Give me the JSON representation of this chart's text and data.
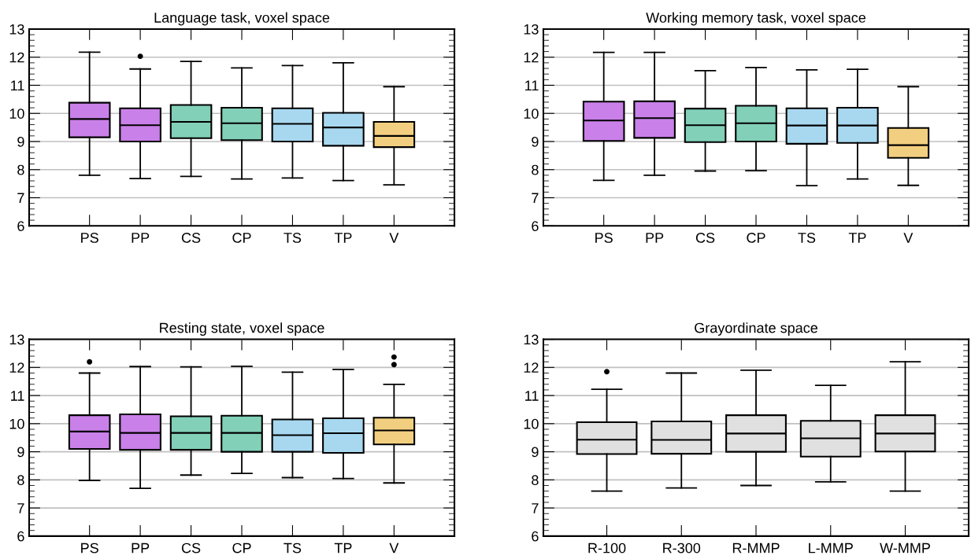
{
  "chart_data": [
    {
      "type": "box",
      "title": "Language task, voxel space",
      "categories": [
        "PS",
        "PP",
        "CS",
        "CP",
        "TS",
        "TP",
        "V"
      ],
      "colors": [
        "#c980e8",
        "#c980e8",
        "#82d0b8",
        "#82d0b8",
        "#a8d8f0",
        "#a8d8f0",
        "#f2cf80"
      ],
      "ylim": [
        6,
        13
      ],
      "yticks": [
        6,
        7,
        8,
        9,
        10,
        11,
        12,
        13
      ],
      "grid": "y",
      "boxes": [
        {
          "low": 7.8,
          "q1": 9.15,
          "median": 9.8,
          "q3": 10.38,
          "high": 12.18
        },
        {
          "low": 7.68,
          "q1": 9.0,
          "median": 9.58,
          "q3": 10.18,
          "high": 11.58,
          "outliers": [
            12.03
          ]
        },
        {
          "low": 7.76,
          "q1": 9.12,
          "median": 9.7,
          "q3": 10.3,
          "high": 11.85
        },
        {
          "low": 7.67,
          "q1": 9.05,
          "median": 9.65,
          "q3": 10.2,
          "high": 11.62
        },
        {
          "low": 7.7,
          "q1": 9.0,
          "median": 9.63,
          "q3": 10.18,
          "high": 11.7
        },
        {
          "low": 7.61,
          "q1": 8.85,
          "median": 9.5,
          "q3": 10.02,
          "high": 11.8
        },
        {
          "low": 7.46,
          "q1": 8.8,
          "median": 9.2,
          "q3": 9.7,
          "high": 10.95
        }
      ]
    },
    {
      "type": "box",
      "title": "Working memory task, voxel space",
      "categories": [
        "PS",
        "PP",
        "CS",
        "CP",
        "TS",
        "TP",
        "V"
      ],
      "colors": [
        "#c980e8",
        "#c980e8",
        "#82d0b8",
        "#82d0b8",
        "#a8d8f0",
        "#a8d8f0",
        "#f2cf80"
      ],
      "ylim": [
        6,
        13
      ],
      "yticks": [
        6,
        7,
        8,
        9,
        10,
        11,
        12,
        13
      ],
      "grid": "y",
      "boxes": [
        {
          "low": 7.62,
          "q1": 9.02,
          "median": 9.75,
          "q3": 10.42,
          "high": 12.17
        },
        {
          "low": 7.8,
          "q1": 9.13,
          "median": 9.83,
          "q3": 10.43,
          "high": 12.17
        },
        {
          "low": 7.95,
          "q1": 8.98,
          "median": 9.58,
          "q3": 10.17,
          "high": 11.52
        },
        {
          "low": 7.96,
          "q1": 9.0,
          "median": 9.65,
          "q3": 10.27,
          "high": 11.63
        },
        {
          "low": 7.43,
          "q1": 8.92,
          "median": 9.57,
          "q3": 10.18,
          "high": 11.55
        },
        {
          "low": 7.67,
          "q1": 8.95,
          "median": 9.57,
          "q3": 10.2,
          "high": 11.57
        },
        {
          "low": 7.44,
          "q1": 8.42,
          "median": 8.87,
          "q3": 9.48,
          "high": 10.95
        }
      ]
    },
    {
      "type": "box",
      "title": "Resting state, voxel space",
      "categories": [
        "PS",
        "PP",
        "CS",
        "CP",
        "TS",
        "TP",
        "V"
      ],
      "colors": [
        "#c980e8",
        "#c980e8",
        "#82d0b8",
        "#82d0b8",
        "#a8d8f0",
        "#a8d8f0",
        "#f2cf80"
      ],
      "ylim": [
        6,
        13
      ],
      "yticks": [
        6,
        7,
        8,
        9,
        10,
        11,
        12,
        13
      ],
      "grid": "y",
      "boxes": [
        {
          "low": 7.98,
          "q1": 9.1,
          "median": 9.72,
          "q3": 10.3,
          "high": 11.8,
          "outliers": [
            12.2
          ]
        },
        {
          "low": 7.7,
          "q1": 9.07,
          "median": 9.67,
          "q3": 10.33,
          "high": 12.03
        },
        {
          "low": 8.17,
          "q1": 9.07,
          "median": 9.67,
          "q3": 10.26,
          "high": 12.02
        },
        {
          "low": 8.23,
          "q1": 9.0,
          "median": 9.67,
          "q3": 10.28,
          "high": 12.04
        },
        {
          "low": 8.08,
          "q1": 9.0,
          "median": 9.59,
          "q3": 10.15,
          "high": 11.83
        },
        {
          "low": 8.05,
          "q1": 8.96,
          "median": 9.66,
          "q3": 10.19,
          "high": 11.93
        },
        {
          "low": 7.89,
          "q1": 9.26,
          "median": 9.76,
          "q3": 10.21,
          "high": 11.4,
          "outliers": [
            12.1,
            12.37
          ]
        }
      ]
    },
    {
      "type": "box",
      "title": "Grayordinate space",
      "categories": [
        "R-100",
        "R-300",
        "R-MMP",
        "L-MMP",
        "W-MMP"
      ],
      "colors": [
        "#e0e0e0",
        "#e0e0e0",
        "#e0e0e0",
        "#e0e0e0",
        "#e0e0e0"
      ],
      "ylim": [
        6,
        13
      ],
      "yticks": [
        6,
        7,
        8,
        9,
        10,
        11,
        12,
        13
      ],
      "grid": "y",
      "boxes": [
        {
          "low": 7.6,
          "q1": 8.92,
          "median": 9.43,
          "q3": 10.05,
          "high": 11.22,
          "outliers": [
            11.85
          ]
        },
        {
          "low": 7.71,
          "q1": 8.93,
          "median": 9.42,
          "q3": 10.08,
          "high": 11.8
        },
        {
          "low": 7.8,
          "q1": 9.0,
          "median": 9.65,
          "q3": 10.3,
          "high": 11.9
        },
        {
          "low": 7.93,
          "q1": 8.83,
          "median": 9.48,
          "q3": 10.1,
          "high": 11.36
        },
        {
          "low": 7.6,
          "q1": 9.01,
          "median": 9.65,
          "q3": 10.3,
          "high": 12.2
        }
      ]
    }
  ]
}
